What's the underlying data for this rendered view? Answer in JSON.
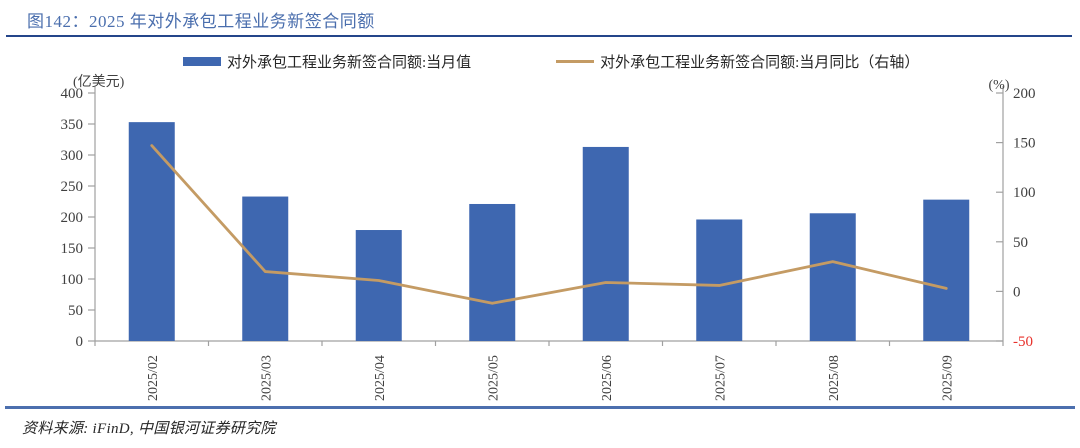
{
  "header": {
    "figure_title": "图142：2025 年对外承包工程业务新签合同额"
  },
  "chart_data": {
    "type": "bar+line",
    "title": "图142：2025 年对外承包工程业务新签合同额",
    "categories": [
      "2025/02",
      "2025/03",
      "2025/04",
      "2025/05",
      "2025/06",
      "2025/07",
      "2025/08",
      "2025/09"
    ],
    "series": [
      {
        "name": "对外承包工程业务新签合同额:当月值",
        "type": "bar",
        "axis": "left",
        "color": "#3E67B0",
        "values": [
          353,
          233,
          179,
          221,
          313,
          196,
          206,
          228
        ]
      },
      {
        "name": "对外承包工程业务新签合同额:当月同比（右轴）",
        "type": "line",
        "axis": "right",
        "color": "#C49B64",
        "values": [
          147,
          20,
          11,
          -12,
          9,
          6,
          30,
          3
        ]
      }
    ],
    "left_axis": {
      "unit": "(亿美元)",
      "min": 0,
      "max": 400,
      "step": 50,
      "tick_labels": [
        "400",
        "350",
        "300",
        "250",
        "200",
        "150",
        "100",
        "50",
        "0"
      ]
    },
    "right_axis": {
      "unit": "(%)",
      "min": -50,
      "max": 200,
      "step": 50,
      "tick_labels": [
        "200",
        "150",
        "100",
        "50",
        "0",
        "-50"
      ],
      "negative_tick_color": "#E8302A"
    },
    "legend_position": "top",
    "grid": false
  },
  "footer": {
    "source": "资料来源: iFinD, 中国银河证券研究院"
  },
  "colors": {
    "background": "#FFFFFF",
    "title_text": "#4A6EAD",
    "title_rule": "#24458A",
    "bottom_rule": "#4C6FAE",
    "axis_line": "#A0A0A0",
    "tick_label": "#404040",
    "legend_text": "#262626",
    "source_text": "#262626"
  }
}
